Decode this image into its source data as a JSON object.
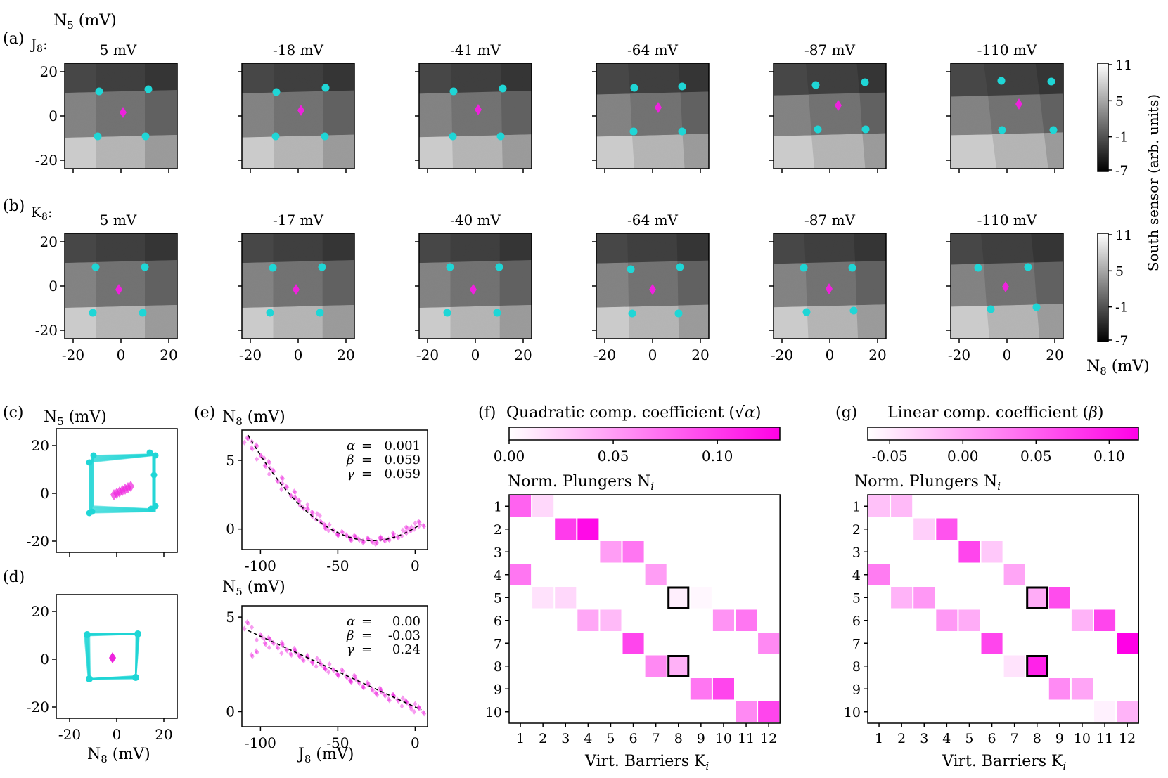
{
  "panel_letters": {
    "a": "(a)",
    "b": "(b)",
    "c": "(c)",
    "d": "(d)",
    "e": "(e)",
    "f": "(f)",
    "g": "(g)"
  },
  "row_a": {
    "prefix": "J",
    "prefix_sub": "8",
    "prefix_colon": ":",
    "titles": [
      "5 mV",
      "-18 mV",
      "-41 mV",
      "-64 mV",
      "-87 mV",
      "-110 mV"
    ]
  },
  "row_b": {
    "prefix": "K",
    "prefix_sub": "8",
    "prefix_colon": ":",
    "titles": [
      "5 mV",
      "-17 mV",
      "-40 mV",
      "-64 mV",
      "-87 mV",
      "-110 mV"
    ]
  },
  "scan_axes": {
    "y_label": "N",
    "y_label_sub": "5",
    "y_label_unit": " (mV)",
    "x_label": "N",
    "x_label_sub": "8",
    "x_label_unit": " (mV)",
    "y_ticks": [
      "20",
      "0",
      "-20"
    ],
    "x_ticks": [
      "-20",
      "0",
      "20"
    ]
  },
  "colorbar": {
    "label": "South sensor (arb. units)",
    "ticks": [
      "11",
      "5",
      "-1",
      "-7"
    ]
  },
  "panel_c": {
    "y_label": "N",
    "y_label_sub": "5",
    "y_label_unit": " (mV)",
    "y_ticks": [
      "20",
      "0",
      "-20"
    ]
  },
  "panel_d": {
    "y_ticks": [
      "20",
      "0",
      "-20"
    ],
    "x_ticks": [
      "-20",
      "0",
      "20"
    ],
    "x_label": "N",
    "x_label_sub": "8",
    "x_label_unit": " (mV)"
  },
  "panel_e_top": {
    "y_label": "N",
    "y_label_sub": "8",
    "y_label_unit": " (mV)",
    "y_ticks": [
      "5",
      "0"
    ],
    "x_ticks": [
      "-100",
      "-50",
      "0"
    ],
    "params": [
      {
        "sym": "α",
        "eq": "= ",
        "val": "0.001"
      },
      {
        "sym": "β",
        "eq": "= ",
        "val": "0.059"
      },
      {
        "sym": "γ",
        "eq": "= ",
        "val": "0.059"
      }
    ]
  },
  "panel_e_bottom": {
    "y_label": "N",
    "y_label_sub": "5",
    "y_label_unit": " (mV)",
    "y_ticks": [
      "5",
      "0"
    ],
    "x_ticks": [
      "-100",
      "-50",
      "0"
    ],
    "x_label": "J",
    "x_label_sub": "8",
    "x_label_unit": " (mV)",
    "params": [
      {
        "sym": "α",
        "eq": "= ",
        "val": "0.00"
      },
      {
        "sym": "β",
        "eq": "= ",
        "val": "-0.03"
      },
      {
        "sym": "γ",
        "eq": "= ",
        "val": "0.24"
      }
    ]
  },
  "panel_f": {
    "title": "Quadratic comp. coefficient (",
    "title_sym": "√α",
    "title_end": ")",
    "cbar_ticks": [
      "0.00",
      "0.05",
      "0.10"
    ],
    "matrix_title": "Norm. Plungers N",
    "matrix_title_sub": "i",
    "x_label": "Virt. Barriers K",
    "x_label_sub": "i",
    "row_labels": [
      "1",
      "2",
      "3",
      "4",
      "5",
      "6",
      "7",
      "8",
      "9",
      "10"
    ],
    "col_labels": [
      "1",
      "2",
      "3",
      "4",
      "5",
      "6",
      "7",
      "8",
      "9",
      "10",
      "11",
      "12"
    ]
  },
  "panel_g": {
    "title": "Linear comp. coefficient (",
    "title_sym": "β",
    "title_end": ")",
    "cbar_ticks": [
      "-0.05",
      "0.00",
      "0.05",
      "0.10"
    ],
    "matrix_title": "Norm. Plungers N",
    "matrix_title_sub": "i",
    "x_label": "Virt. Barriers K",
    "x_label_sub": "i",
    "row_labels": [
      "1",
      "2",
      "3",
      "4",
      "5",
      "6",
      "7",
      "8",
      "9",
      "10"
    ],
    "col_labels": [
      "1",
      "2",
      "3",
      "4",
      "5",
      "6",
      "7",
      "8",
      "9",
      "10",
      "11",
      "12"
    ]
  },
  "colors": {
    "cyan": "#1fd6d6",
    "magenta": "#ee22dd",
    "frame": "#000000"
  },
  "chart_data": [
    {
      "type": "heatmap",
      "title": "Quadratic comp. coefficient (√α)",
      "xlabel": "Virt. Barriers K_i",
      "ylabel": "Norm. Plungers N_i",
      "vmin": 0.0,
      "vmax": 0.13,
      "cells": [
        {
          "row": 1,
          "col": 1,
          "value": 0.08
        },
        {
          "row": 1,
          "col": 2,
          "value": 0.02
        },
        {
          "row": 2,
          "col": 3,
          "value": 0.1
        },
        {
          "row": 2,
          "col": 4,
          "value": 0.125
        },
        {
          "row": 3,
          "col": 5,
          "value": 0.05
        },
        {
          "row": 3,
          "col": 6,
          "value": 0.07
        },
        {
          "row": 4,
          "col": 1,
          "value": 0.07
        },
        {
          "row": 4,
          "col": 7,
          "value": 0.05
        },
        {
          "row": 5,
          "col": 2,
          "value": 0.015
        },
        {
          "row": 5,
          "col": 3,
          "value": 0.02
        },
        {
          "row": 5,
          "col": 8,
          "value": 0.008
        },
        {
          "row": 5,
          "col": 9,
          "value": 0.004
        },
        {
          "row": 6,
          "col": 4,
          "value": 0.045
        },
        {
          "row": 6,
          "col": 5,
          "value": 0.035
        },
        {
          "row": 6,
          "col": 10,
          "value": 0.055
        },
        {
          "row": 6,
          "col": 11,
          "value": 0.07
        },
        {
          "row": 7,
          "col": 6,
          "value": 0.095
        },
        {
          "row": 7,
          "col": 12,
          "value": 0.06
        },
        {
          "row": 8,
          "col": 7,
          "value": 0.06
        },
        {
          "row": 8,
          "col": 8,
          "value": 0.04
        },
        {
          "row": 9,
          "col": 9,
          "value": 0.07
        },
        {
          "row": 9,
          "col": 10,
          "value": 0.095
        },
        {
          "row": 10,
          "col": 11,
          "value": 0.06
        },
        {
          "row": 10,
          "col": 12,
          "value": 0.095
        }
      ],
      "highlighted": [
        {
          "row": 5,
          "col": 8
        },
        {
          "row": 8,
          "col": 8
        }
      ]
    },
    {
      "type": "heatmap",
      "title": "Linear comp. coefficient (β)",
      "xlabel": "Virt. Barriers K_i",
      "ylabel": "Norm. Plungers N_i",
      "vmin": -0.065,
      "vmax": 0.12,
      "cells": [
        {
          "row": 1,
          "col": 1,
          "value": -0.02
        },
        {
          "row": 1,
          "col": 2,
          "value": -0.015
        },
        {
          "row": 2,
          "col": 3,
          "value": -0.03
        },
        {
          "row": 2,
          "col": 4,
          "value": 0.06
        },
        {
          "row": 3,
          "col": 5,
          "value": 0.07
        },
        {
          "row": 3,
          "col": 6,
          "value": -0.025
        },
        {
          "row": 4,
          "col": 1,
          "value": 0.03
        },
        {
          "row": 4,
          "col": 7,
          "value": 0.0
        },
        {
          "row": 5,
          "col": 2,
          "value": -0.01
        },
        {
          "row": 5,
          "col": 3,
          "value": 0.01
        },
        {
          "row": 5,
          "col": 8,
          "value": -0.005
        },
        {
          "row": 5,
          "col": 9,
          "value": 0.065
        },
        {
          "row": 6,
          "col": 4,
          "value": 0.01
        },
        {
          "row": 6,
          "col": 5,
          "value": -0.005
        },
        {
          "row": 6,
          "col": 10,
          "value": -0.01
        },
        {
          "row": 6,
          "col": 11,
          "value": 0.07
        },
        {
          "row": 7,
          "col": 6,
          "value": 0.07
        },
        {
          "row": 7,
          "col": 12,
          "value": 0.12
        },
        {
          "row": 8,
          "col": 7,
          "value": -0.045
        },
        {
          "row": 8,
          "col": 8,
          "value": 0.095
        },
        {
          "row": 9,
          "col": 9,
          "value": 0.02
        },
        {
          "row": 9,
          "col": 10,
          "value": 0.0
        },
        {
          "row": 10,
          "col": 11,
          "value": -0.055
        },
        {
          "row": 10,
          "col": 12,
          "value": -0.01
        }
      ],
      "highlighted": [
        {
          "row": 5,
          "col": 8
        },
        {
          "row": 8,
          "col": 8
        }
      ]
    },
    {
      "type": "scatter",
      "title": "(e) top",
      "xlabel": "J8 (mV)",
      "ylabel": "N8 (mV)",
      "xlim": [
        -112,
        8
      ],
      "ylim": [
        -1.5,
        7.2
      ],
      "fit": {
        "alpha": 0.001,
        "beta": 0.059,
        "gamma": 0.059
      },
      "x": [
        -108,
        -104,
        -100,
        -96,
        -92,
        -88,
        -84,
        -80,
        -76,
        -72,
        -68,
        -64,
        -60,
        -56,
        -52,
        -48,
        -44,
        -40,
        -36,
        -32,
        -28,
        -24,
        -20,
        -16,
        -12,
        -8,
        -4,
        0,
        4
      ],
      "y": [
        6.5,
        5.9,
        5.3,
        4.7,
        4.2,
        3.6,
        3.1,
        2.6,
        2.1,
        1.7,
        1.3,
        0.9,
        0.4,
        0.1,
        -0.2,
        -0.4,
        -0.5,
        -0.7,
        -0.8,
        -0.8,
        -0.9,
        -0.8,
        -0.8,
        -0.6,
        -0.5,
        -0.3,
        0.0,
        0.2,
        0.4
      ]
    },
    {
      "type": "scatter",
      "title": "(e) bottom",
      "xlabel": "J8 (mV)",
      "ylabel": "N5 (mV)",
      "xlim": [
        -112,
        8
      ],
      "ylim": [
        -0.8,
        5.6
      ],
      "fit": {
        "alpha": 0.0,
        "beta": -0.03,
        "gamma": 0.24
      },
      "x": [
        -108,
        -104,
        -100,
        -96,
        -92,
        -88,
        -84,
        -80,
        -76,
        -72,
        -68,
        -64,
        -60,
        -56,
        -52,
        -48,
        -44,
        -40,
        -36,
        -32,
        -28,
        -24,
        -20,
        -16,
        -12,
        -8,
        -4,
        0,
        4
      ],
      "y": [
        4.6,
        3.0,
        4.0,
        3.7,
        3.6,
        3.5,
        3.3,
        3.2,
        3.0,
        2.9,
        2.7,
        2.6,
        2.4,
        2.3,
        2.1,
        2.0,
        1.8,
        1.7,
        1.5,
        1.4,
        1.2,
        1.1,
        0.9,
        0.8,
        0.7,
        0.5,
        0.4,
        0.2,
        0.1
      ]
    }
  ]
}
